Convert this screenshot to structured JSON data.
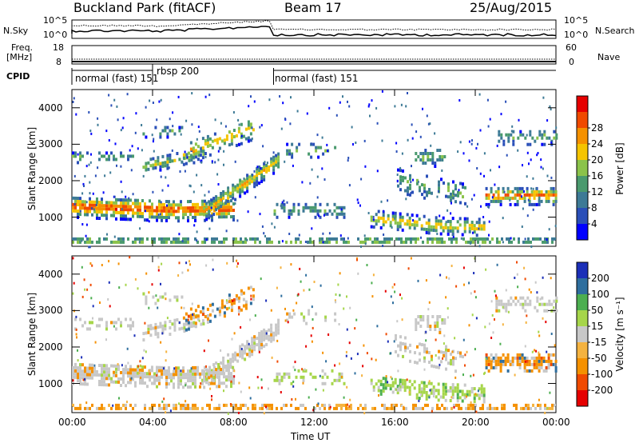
{
  "header": {
    "station": "Buckland Park (fitACF)",
    "beam": "Beam 17",
    "date": "25/Aug/2015"
  },
  "left_labels": {
    "nsky": "N.Sky",
    "freq_line1": "Freq.",
    "freq_line2": "[MHz]",
    "cpid": "CPID"
  },
  "right_labels": {
    "nsearch": "N.Search",
    "nave": "Nave"
  },
  "noise_ticks_left": [
    "10^5",
    "10^0"
  ],
  "noise_ticks_right": [
    "10^5",
    "10^0"
  ],
  "freq_ticks_left": [
    "18",
    "8"
  ],
  "nave_ticks_right": [
    "60",
    "0"
  ],
  "cpid_segments": [
    {
      "label": "normal (fast) 151",
      "start_hour": 0,
      "end_hour": 4
    },
    {
      "label": "rbsp 200",
      "start_hour": 4,
      "end_hour": 10
    },
    {
      "label": "normal (fast) 151",
      "start_hour": 10,
      "end_hour": 24
    }
  ],
  "x_ticks": [
    "00:00",
    "04:00",
    "08:00",
    "12:00",
    "16:00",
    "20:00",
    "00:00"
  ],
  "xlabel": "Time UT",
  "colors": {
    "power_scale": [
      "#0000ff",
      "#2a4fb8",
      "#3d7a96",
      "#4a9a6e",
      "#8bc34a",
      "#f5c400",
      "#f59100",
      "#f04a00",
      "#e60000"
    ],
    "velocity_scale": [
      "#e60000",
      "#f04a00",
      "#f59100",
      "#f5b340",
      "#c8c8c8",
      "#a6d64a",
      "#4caf50",
      "#2e6e9e",
      "#1b2fb8"
    ]
  },
  "chart_data": [
    {
      "type": "heatmap",
      "name": "power",
      "ylabel": "Slant Range [km]",
      "yticks": [
        "1000",
        "2000",
        "3000",
        "4000"
      ],
      "ylim": [
        200,
        4500
      ],
      "xlim": [
        0,
        24
      ],
      "colorbar_label": "Power [dB]",
      "colorbar_ticks": [
        "4",
        "8",
        "12",
        "16",
        "20",
        "24",
        "28"
      ]
    },
    {
      "type": "heatmap",
      "name": "velocity",
      "ylabel": "Slant Range [km]",
      "yticks": [
        "1000",
        "2000",
        "3000",
        "4000"
      ],
      "ylim": [
        200,
        4500
      ],
      "xlim": [
        0,
        24
      ],
      "colorbar_label": "Velocity [m s⁻¹]",
      "colorbar_ticks": [
        "200",
        "100",
        "50",
        "15",
        "-15",
        "-50",
        "-100",
        "-200"
      ]
    }
  ]
}
